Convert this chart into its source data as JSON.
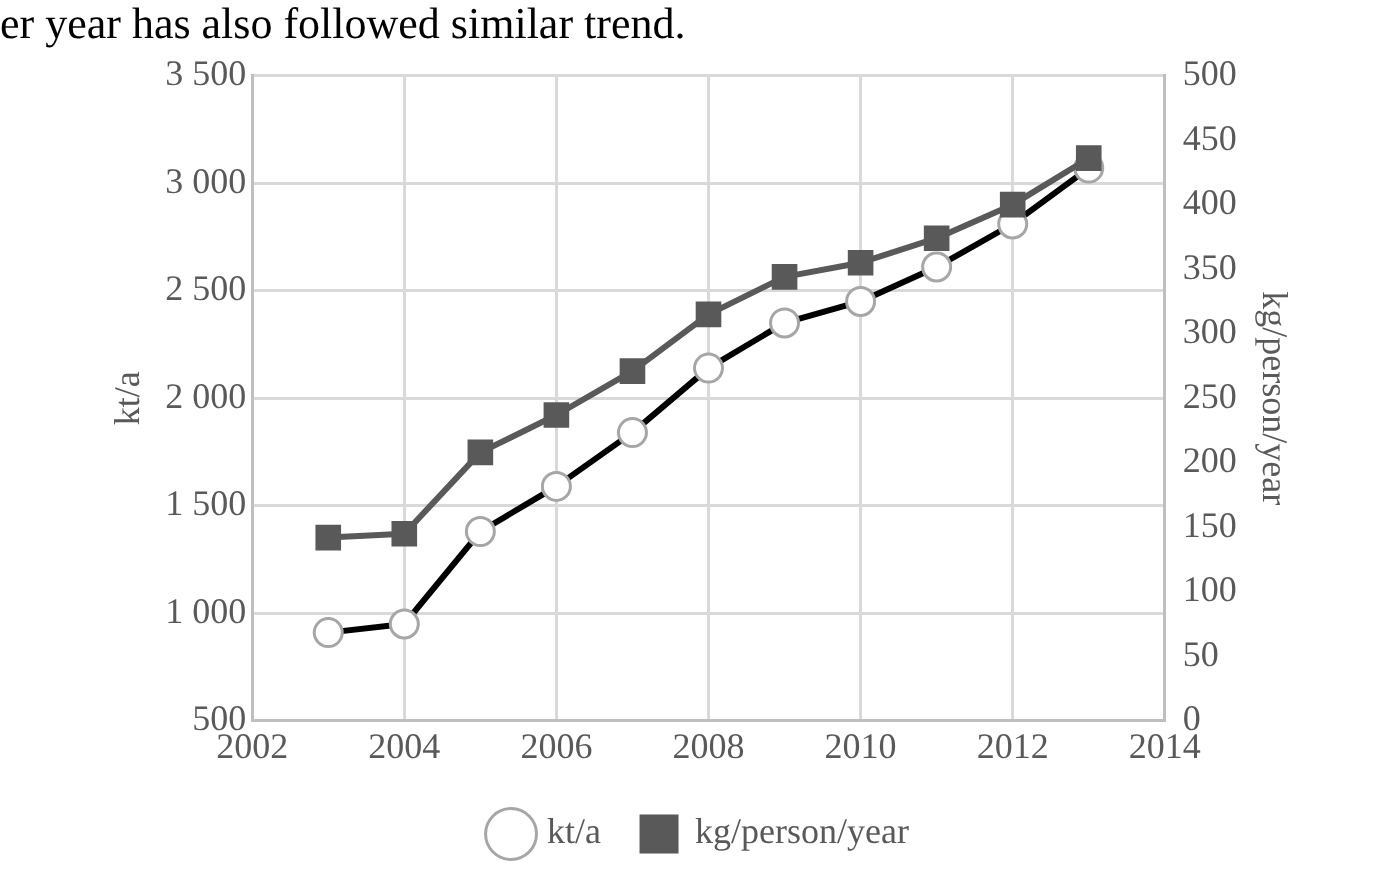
{
  "chart_data": {
    "type": "line",
    "annotations": [
      "er year has also followed similar trend."
    ],
    "xlabel": null,
    "ylabel": "kt/a",
    "y2label": "kg/person/year",
    "x": [
      2003,
      2004,
      2005,
      2006,
      2007,
      2008,
      2009,
      2010,
      2011,
      2012,
      2013
    ],
    "series": [
      {
        "name": "kt/a",
        "color": "#000000",
        "marker": "circle",
        "values": [
          910,
          950,
          1380,
          1590,
          1840,
          2140,
          2350,
          2450,
          2610,
          2810,
          3070
        ]
      },
      {
        "name": "kg/person/year",
        "color": "#595959",
        "marker": "square",
        "axis": "y2",
        "values": [
          142,
          145,
          208,
          237,
          271,
          315,
          344,
          355,
          374,
          400,
          436
        ]
      }
    ],
    "xlim": [
      2002,
      2014
    ],
    "xticks": [
      2002,
      2004,
      2006,
      2008,
      2010,
      2012,
      2014
    ],
    "ylim": [
      500,
      3500
    ],
    "yticks": [
      500,
      {
        "value": 1000,
        "label": "1 000"
      },
      {
        "value": 1500,
        "label": "1 500"
      },
      {
        "value": 2000,
        "label": "2 000"
      },
      {
        "value": 2500,
        "label": "2 500"
      },
      {
        "value": 3000,
        "label": "3 000"
      },
      {
        "value": 3500,
        "label": "3 500"
      }
    ],
    "y2lim": [
      0,
      500
    ],
    "y2ticks": [
      0,
      50,
      100,
      150,
      200,
      250,
      300,
      350,
      400,
      450,
      500
    ],
    "grid": true,
    "legend": "bottom",
    "line_style": "solid"
  }
}
